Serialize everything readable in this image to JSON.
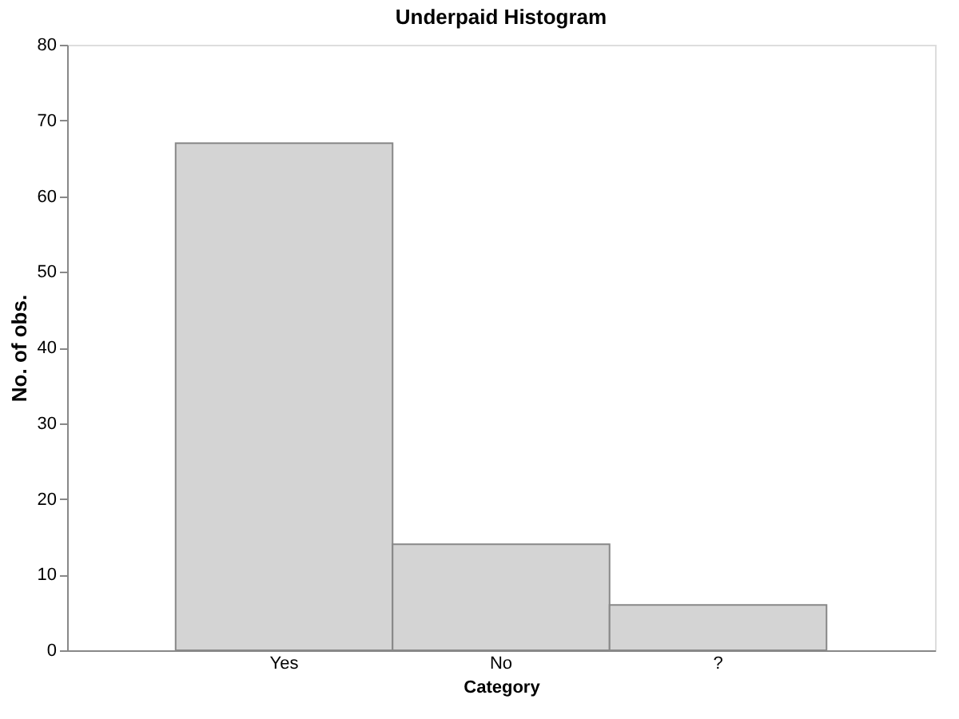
{
  "chart_data": {
    "type": "bar",
    "title": "Underpaid Histogram",
    "xlabel": "Category",
    "ylabel": "No. of obs.",
    "categories": [
      "Yes",
      "No",
      "?"
    ],
    "values": [
      67,
      14,
      6
    ],
    "color": "#d4d4d4",
    "ylim": [
      0,
      80
    ],
    "yticks": [
      0,
      10,
      20,
      30,
      40,
      50,
      60,
      70,
      80
    ],
    "grid": false
  }
}
